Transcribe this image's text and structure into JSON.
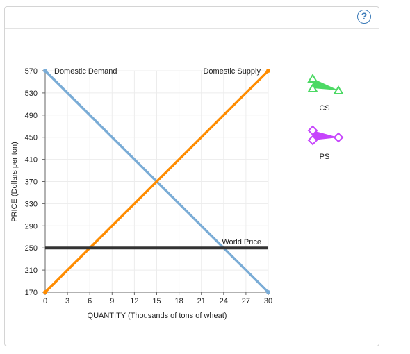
{
  "help": {
    "label": "?"
  },
  "chart_data": {
    "type": "line",
    "title": "",
    "xlabel": "QUANTITY (Thousands of tons of wheat)",
    "ylabel": "PRICE (Dollars per ton)",
    "xlim": [
      0,
      30
    ],
    "ylim": [
      170,
      570
    ],
    "x_ticks": [
      0,
      3,
      6,
      9,
      12,
      15,
      18,
      21,
      24,
      27,
      30
    ],
    "y_ticks": [
      170,
      210,
      250,
      290,
      330,
      370,
      410,
      450,
      490,
      530,
      570
    ],
    "grid": true,
    "series": [
      {
        "name": "Domestic Demand",
        "color": "#7aacd6",
        "points": [
          [
            0,
            570
          ],
          [
            30,
            170
          ]
        ]
      },
      {
        "name": "Domestic Supply",
        "color": "#ff8c00",
        "points": [
          [
            0,
            170
          ],
          [
            30,
            570
          ]
        ]
      },
      {
        "name": "World Price",
        "color": "#333333",
        "points": [
          [
            0,
            250
          ],
          [
            30,
            250
          ]
        ]
      }
    ],
    "legend_tools": [
      {
        "label": "CS",
        "color": "#4cd964",
        "icon": "triangle-tool-icon"
      },
      {
        "label": "PS",
        "color": "#c644fc",
        "icon": "triangle-tool-icon"
      }
    ]
  }
}
